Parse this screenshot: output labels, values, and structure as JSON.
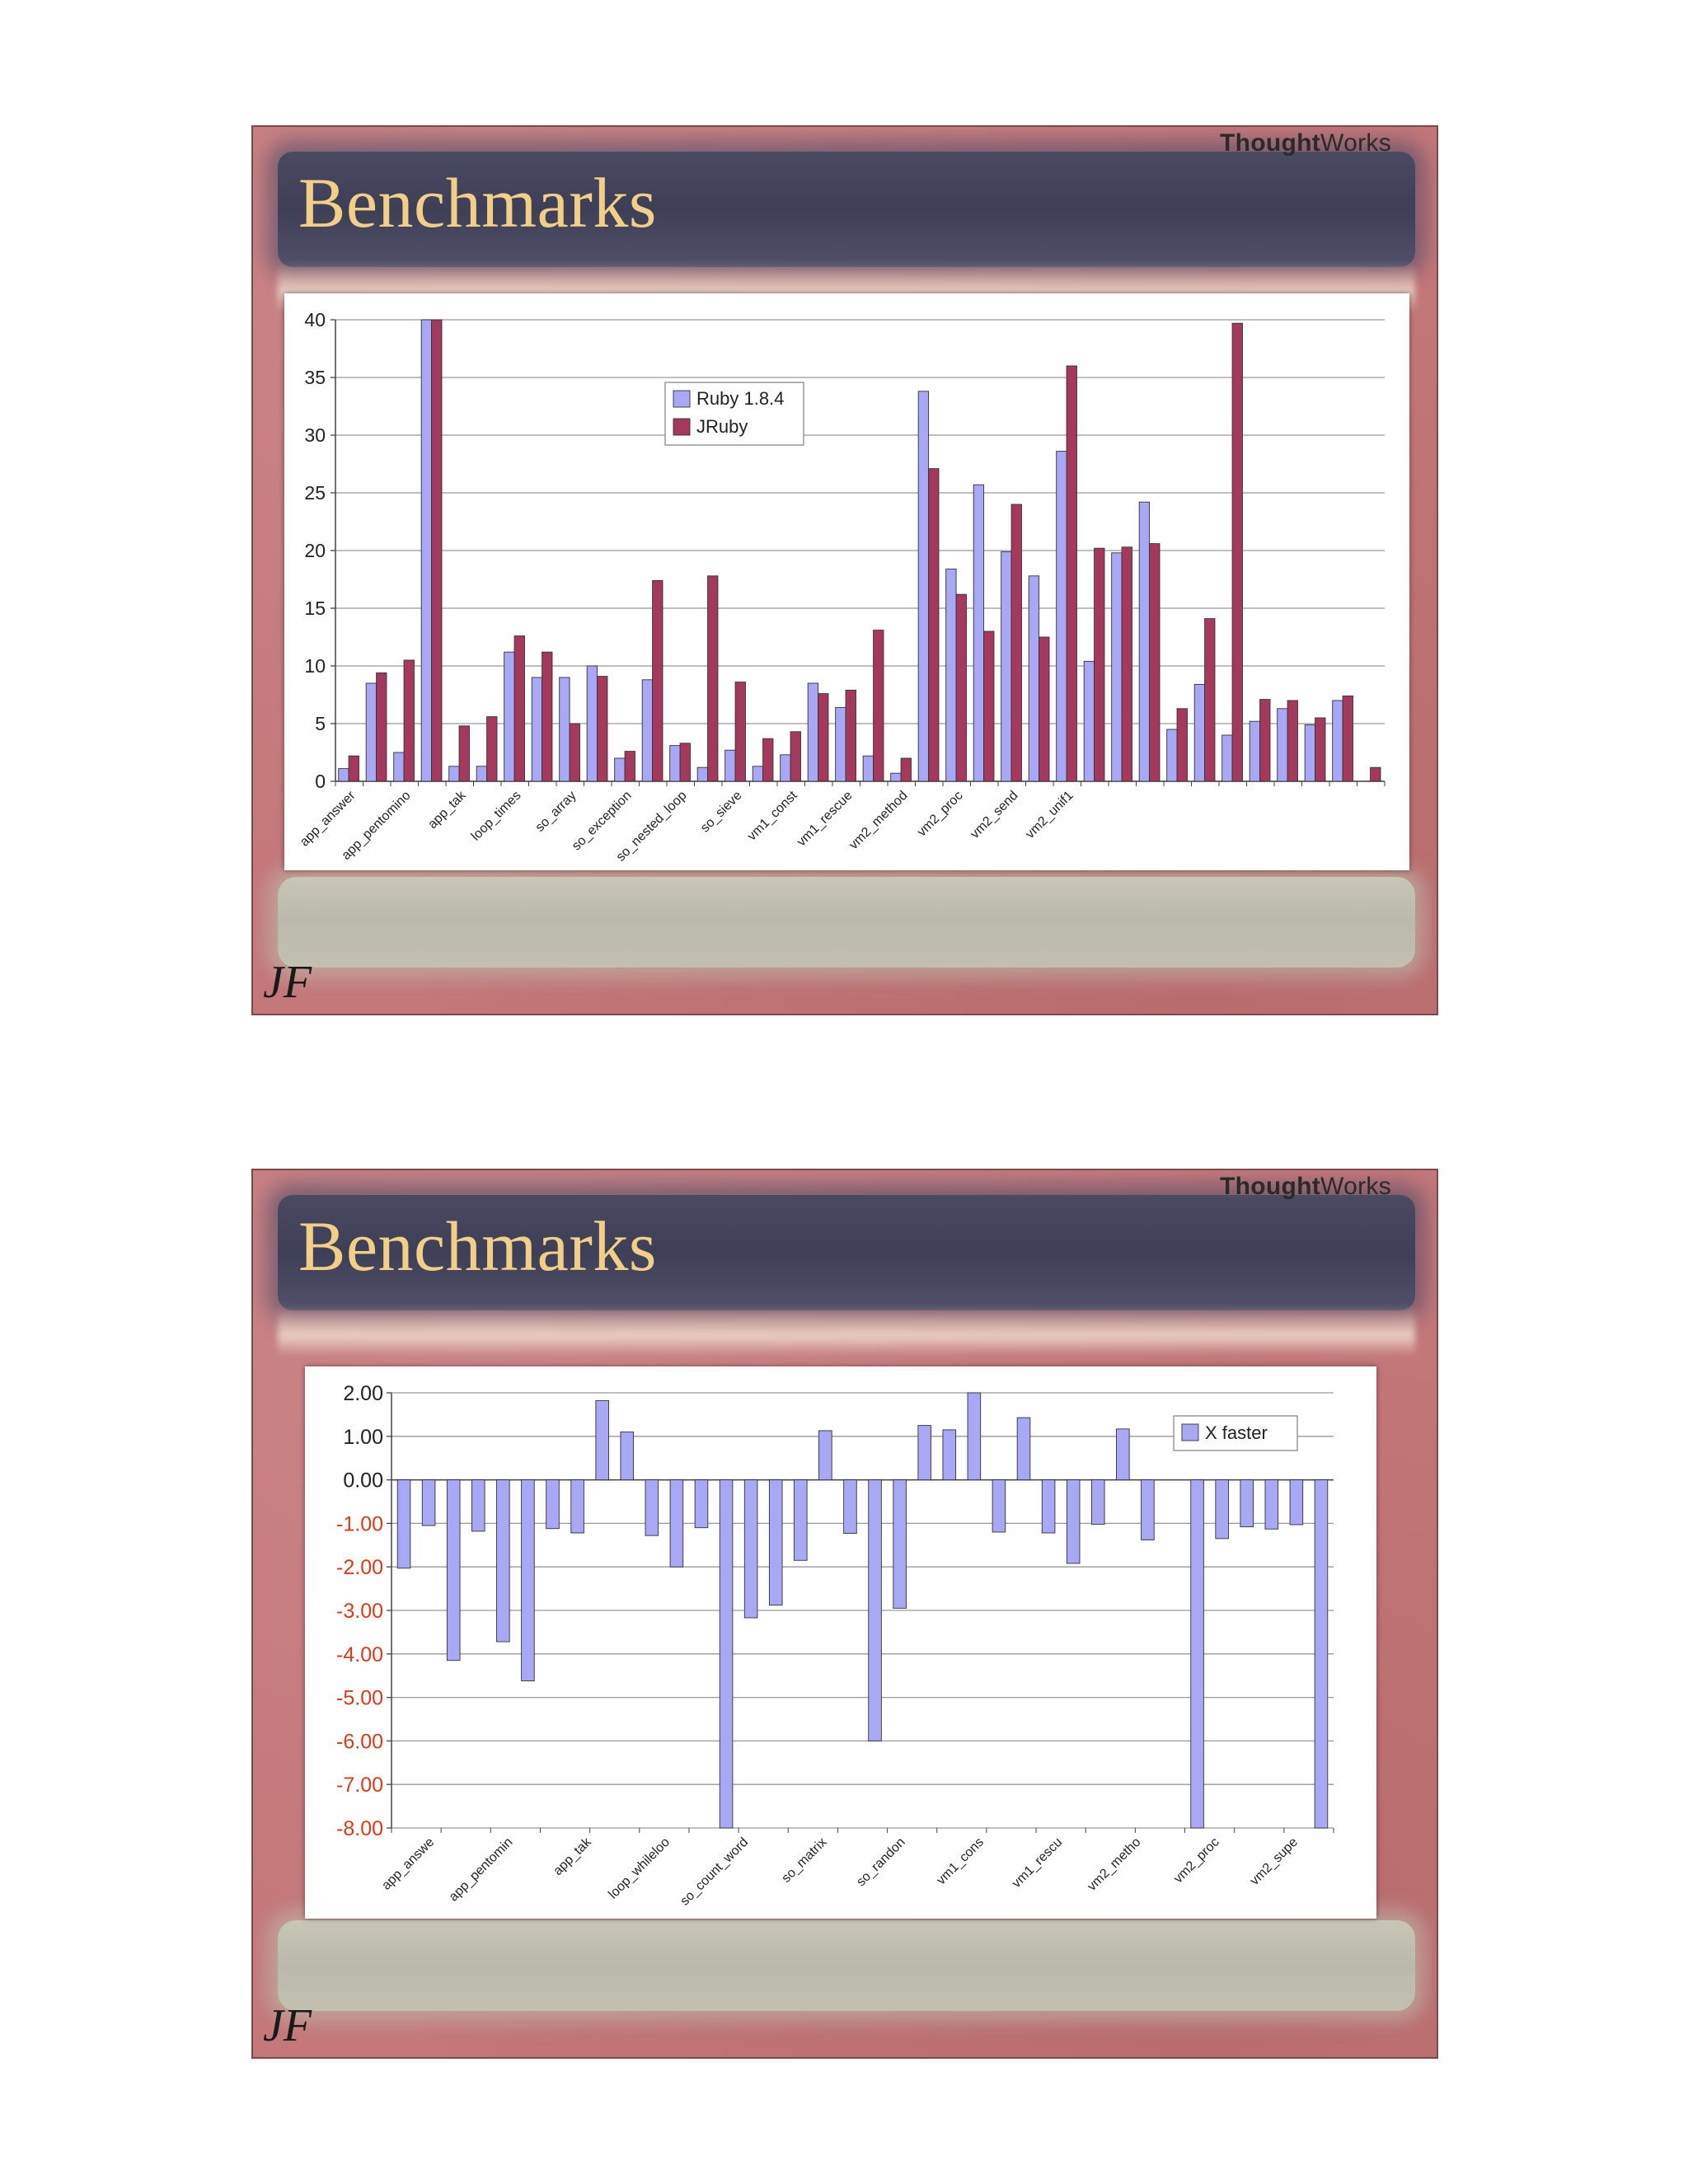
{
  "slides": [
    {
      "brand": {
        "strong": "Thought",
        "light": "Works"
      },
      "title": "Benchmarks",
      "logo": "JF"
    },
    {
      "brand": {
        "strong": "Thought",
        "light": "Works"
      },
      "title": "Benchmarks",
      "logo": "JF"
    }
  ],
  "colors": {
    "ruby": "#a8a8f4",
    "jruby": "#a33a5e",
    "xfaster": "#a8a8f4",
    "negative_tick": "#d83a1a"
  },
  "chart_data": [
    {
      "type": "bar",
      "title": "",
      "xlabel": "",
      "ylabel": "",
      "ylim": [
        0,
        40
      ],
      "yticks": [
        0,
        5,
        10,
        15,
        20,
        25,
        30,
        35,
        40
      ],
      "grid": true,
      "legend": "top-center",
      "tick_labels": [
        "app_answer",
        "app_pentomino",
        "app_tak",
        "loop_times",
        "so_array",
        "so_exception",
        "so_nested_loop",
        "so_sieve",
        "vm1_const",
        "vm1_rescue",
        "vm2_method",
        "vm2_proc",
        "vm2_send",
        "vm2_unif1"
      ],
      "tick_label_step": 2,
      "category_count": 38,
      "series": [
        {
          "name": "Ruby 1.8.4",
          "values": [
            1.1,
            8.5,
            2.5,
            40,
            1.3,
            1.3,
            11.2,
            9.0,
            9.0,
            10.0,
            2.0,
            8.8,
            3.1,
            1.2,
            2.7,
            1.3,
            2.3,
            8.5,
            6.4,
            2.2,
            0.7,
            33.8,
            18.4,
            25.7,
            19.9,
            17.8,
            28.6,
            10.4,
            19.8,
            24.2,
            4.5,
            8.4,
            4.0,
            5.2,
            6.3,
            4.9,
            7.0,
            0
          ]
        },
        {
          "name": "JRuby",
          "values": [
            2.2,
            9.4,
            10.5,
            40,
            4.8,
            5.6,
            12.6,
            11.2,
            5.0,
            9.1,
            2.6,
            17.4,
            3.3,
            17.8,
            8.6,
            3.7,
            4.3,
            7.6,
            7.9,
            13.1,
            2.0,
            27.1,
            16.2,
            13.0,
            24.0,
            12.5,
            36.0,
            20.2,
            20.3,
            20.6,
            6.3,
            14.1,
            39.7,
            7.1,
            7.0,
            5.5,
            7.4,
            1.2
          ]
        }
      ]
    },
    {
      "type": "bar",
      "title": "",
      "xlabel": "",
      "ylabel": "",
      "ylim": [
        -8,
        2
      ],
      "yticks": [
        "2.00",
        "1.00",
        "0.00",
        "-1.00",
        "-2.00",
        "-3.00",
        "-4.00",
        "-5.00",
        "-6.00",
        "-7.00",
        "-8.00"
      ],
      "grid": true,
      "legend": "top-right",
      "tick_labels": [
        "app_answe",
        "app_pentomin",
        "app_tak",
        "loop_whileloo",
        "so_count_word",
        "so_matrix",
        "so_randon",
        "vm1_cons",
        "vm1_rescu",
        "vm2_metho",
        "vm2_proc",
        "vm2_supe"
      ],
      "category_count": 38,
      "series": [
        {
          "name": "X faster",
          "values": [
            -2.03,
            -1.05,
            -4.15,
            -1.18,
            -3.72,
            -4.62,
            -1.12,
            -1.22,
            1.82,
            1.1,
            -1.28,
            -2.0,
            -1.1,
            -8.0,
            -3.17,
            -2.88,
            -1.85,
            1.13,
            -1.23,
            -6.0,
            -2.95,
            1.25,
            1.15,
            2.0,
            -1.2,
            1.43,
            -1.22,
            -1.92,
            -1.02,
            1.17,
            -1.38,
            0,
            -8.0,
            -1.35,
            -1.08,
            -1.13,
            -1.03,
            -8.0
          ]
        }
      ]
    }
  ]
}
